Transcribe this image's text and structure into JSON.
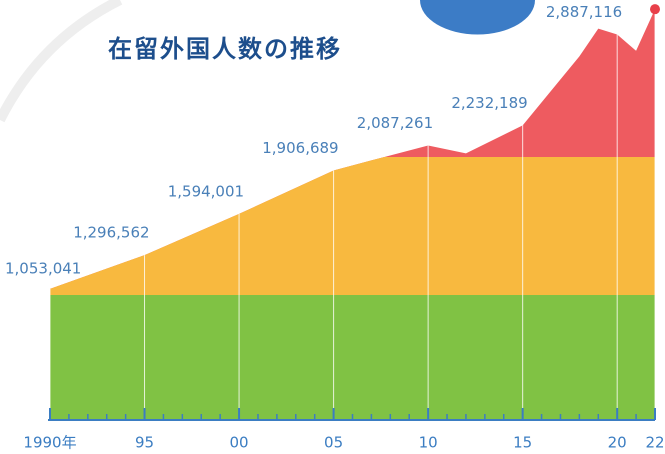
{
  "chart_data": {
    "type": "area",
    "title": "在留外国人数の推移",
    "x": [
      1990,
      1995,
      2000,
      2005,
      2007,
      2010,
      2012,
      2015,
      2018,
      2019,
      2020,
      2021,
      2022
    ],
    "values": [
      1053041,
      1296562,
      1594001,
      1906689,
      1980000,
      2087261,
      2030000,
      2232189,
      2730000,
      2930000,
      2887116,
      2770000,
      3070000
    ],
    "value_labels": [
      "1,053,041",
      "1,296,562",
      "1,594,001",
      "1,906,689",
      null,
      "2,087,261",
      null,
      "2,232,189",
      null,
      null,
      "2,887,116",
      null,
      null
    ],
    "xlim": [
      1990,
      2022
    ],
    "ylim": [
      0,
      3100000
    ],
    "xticks": [
      {
        "value": 1990,
        "label": "1990年"
      },
      {
        "value": 1995,
        "label": "95"
      },
      {
        "value": 2000,
        "label": "00"
      },
      {
        "value": 2005,
        "label": "05"
      },
      {
        "value": 2010,
        "label": "10"
      },
      {
        "value": 2015,
        "label": "15"
      },
      {
        "value": 2020,
        "label": "20"
      },
      {
        "value": 2022,
        "label": "22"
      }
    ],
    "xminorticks": [
      1991,
      1992,
      1993,
      1994,
      1996,
      1997,
      1998,
      1999,
      2001,
      2002,
      2003,
      2004,
      2006,
      2007,
      2008,
      2009,
      2011,
      2012,
      2013,
      2014,
      2016,
      2017,
      2018,
      2019,
      2021
    ],
    "band_colors": [
      "#80c244",
      "#f8b93f",
      "#ee5b60"
    ],
    "label_color": "#4a80b8",
    "axis_color": "#3b7dc2",
    "end_marker_color": "#e8404a"
  }
}
